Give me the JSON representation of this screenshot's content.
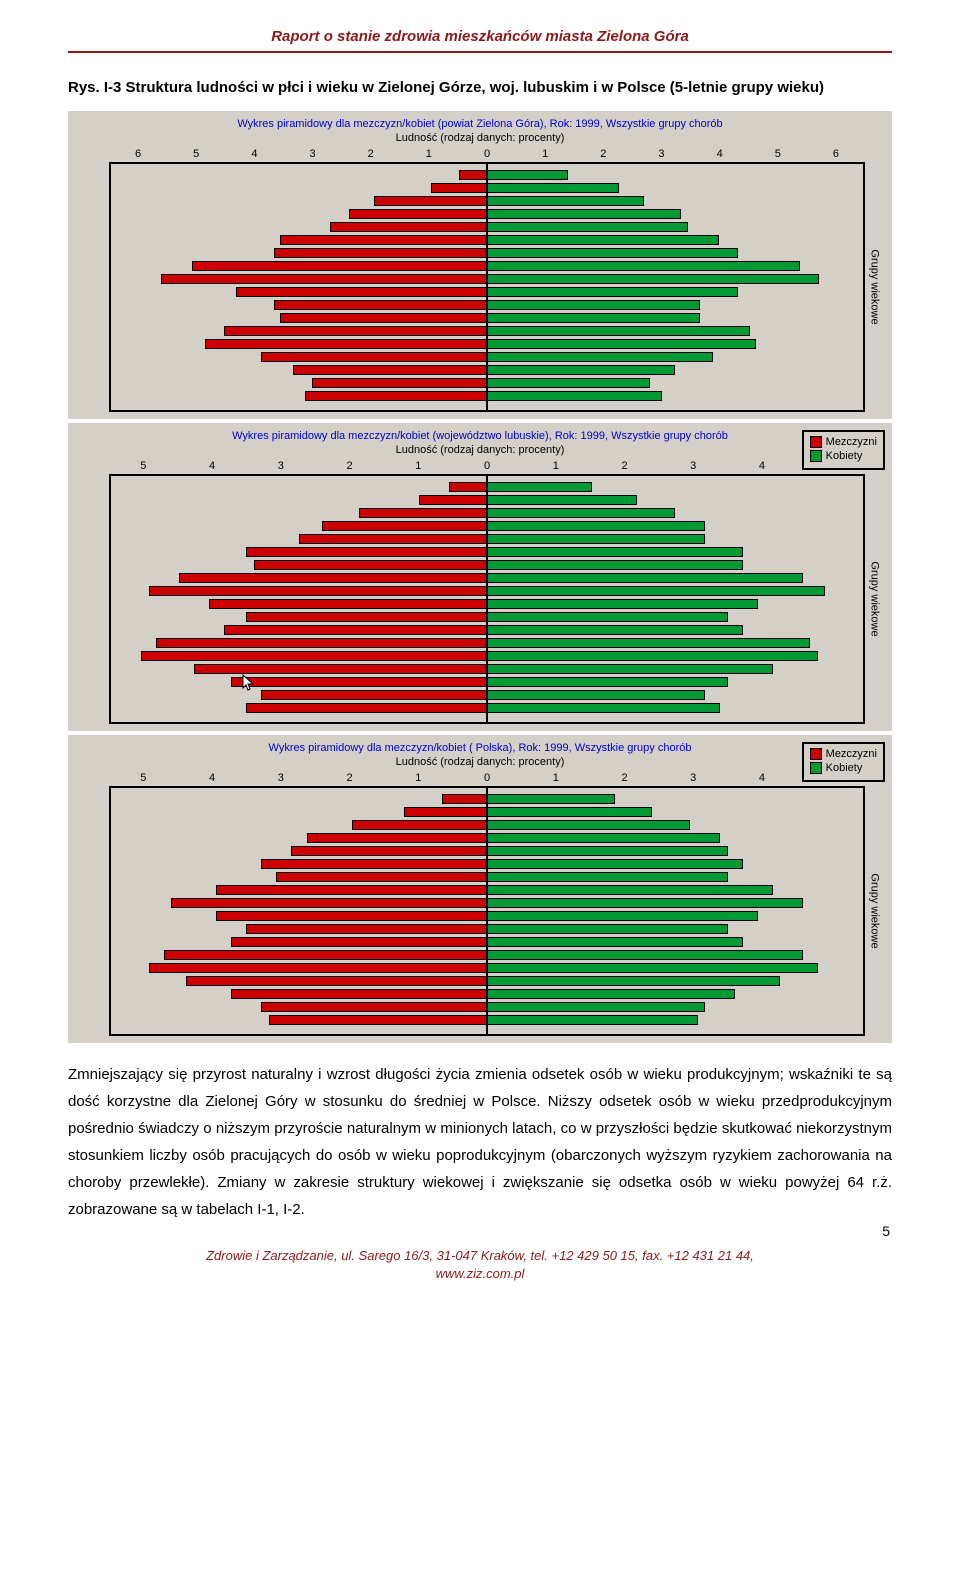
{
  "header": "Raport o stanie zdrowia mieszkańców miasta Zielona Góra",
  "figure_caption": "Rys. I-3 Struktura ludności w płci i wieku w Zielonej Górze, woj. lubuskim i w Polsce (5-letnie grupy wieku)",
  "charts": [
    {
      "title": "Wykres piramidowy dla mezczyzn/kobiet (powiat  Zielona Góra), Rok: 1999, Wszystkie grupy chorób",
      "subtitle": "Ludność (rodzaj danych: procenty)",
      "x_ticks": [
        "6",
        "5",
        "4",
        "3",
        "2",
        "1",
        "0",
        "1",
        "2",
        "3",
        "4",
        "5",
        "6"
      ],
      "max": 6,
      "y_label": "Grupy wiekowe",
      "left_color": "#cc0000",
      "right_color": "#009933",
      "bg_color": "#d4d0c8",
      "border_color": "#000000",
      "has_legend": false,
      "bars": [
        {
          "l": 0.45,
          "r": 1.3
        },
        {
          "l": 0.9,
          "r": 2.1
        },
        {
          "l": 1.8,
          "r": 2.5
        },
        {
          "l": 2.2,
          "r": 3.1
        },
        {
          "l": 2.5,
          "r": 3.2
        },
        {
          "l": 3.3,
          "r": 3.7
        },
        {
          "l": 3.4,
          "r": 4.0
        },
        {
          "l": 4.7,
          "r": 5.0
        },
        {
          "l": 5.2,
          "r": 5.3
        },
        {
          "l": 4.0,
          "r": 4.0
        },
        {
          "l": 3.4,
          "r": 3.4
        },
        {
          "l": 3.3,
          "r": 3.4
        },
        {
          "l": 4.2,
          "r": 4.2
        },
        {
          "l": 4.5,
          "r": 4.3
        },
        {
          "l": 3.6,
          "r": 3.6
        },
        {
          "l": 3.1,
          "r": 3.0
        },
        {
          "l": 2.8,
          "r": 2.6
        },
        {
          "l": 2.9,
          "r": 2.8
        }
      ]
    },
    {
      "title": "Wykres piramidowy dla mezczyzn/kobiet (województwo lubuskie), Rok: 1999, Wszystkie grupy chorób",
      "subtitle": "Ludność (rodzaj danych: procenty)",
      "x_ticks": [
        "5",
        "4",
        "3",
        "2",
        "1",
        "0",
        "1",
        "2",
        "3",
        "4",
        "5"
      ],
      "max": 5,
      "y_label": "Grupy wiekowe",
      "left_color": "#cc0000",
      "right_color": "#009933",
      "bg_color": "#d4d0c8",
      "border_color": "#000000",
      "has_legend": true,
      "legend_items": [
        {
          "color": "#cc0000",
          "label": "Mezczyzni"
        },
        {
          "color": "#009933",
          "label": "Kobiety"
        }
      ],
      "bars": [
        {
          "l": 0.5,
          "r": 1.4
        },
        {
          "l": 0.9,
          "r": 2.0
        },
        {
          "l": 1.7,
          "r": 2.5
        },
        {
          "l": 2.2,
          "r": 2.9
        },
        {
          "l": 2.5,
          "r": 2.9
        },
        {
          "l": 3.2,
          "r": 3.4
        },
        {
          "l": 3.1,
          "r": 3.4
        },
        {
          "l": 4.1,
          "r": 4.2
        },
        {
          "l": 4.5,
          "r": 4.5
        },
        {
          "l": 3.7,
          "r": 3.6
        },
        {
          "l": 3.2,
          "r": 3.2
        },
        {
          "l": 3.5,
          "r": 3.4
        },
        {
          "l": 4.4,
          "r": 4.3
        },
        {
          "l": 4.6,
          "r": 4.4
        },
        {
          "l": 3.9,
          "r": 3.8
        },
        {
          "l": 3.4,
          "r": 3.2
        },
        {
          "l": 3.0,
          "r": 2.9
        },
        {
          "l": 3.2,
          "r": 3.1
        }
      ],
      "cursor_pos": {
        "left_pct": 21,
        "top_pct": 82
      }
    },
    {
      "title": "Wykres piramidowy dla mezczyzn/kobiet ( Polska), Rok: 1999, Wszystkie grupy chorób",
      "subtitle": "Ludność (rodzaj danych: procenty)",
      "x_ticks": [
        "5",
        "4",
        "3",
        "2",
        "1",
        "0",
        "1",
        "2",
        "3",
        "4",
        "5"
      ],
      "max": 5,
      "y_label": "Grupy wiekowe",
      "left_color": "#cc0000",
      "right_color": "#009933",
      "bg_color": "#d4d0c8",
      "border_color": "#000000",
      "has_legend": true,
      "legend_items": [
        {
          "color": "#cc0000",
          "label": "Mezczyzni"
        },
        {
          "color": "#009933",
          "label": "Kobiety"
        }
      ],
      "bars": [
        {
          "l": 0.6,
          "r": 1.7
        },
        {
          "l": 1.1,
          "r": 2.2
        },
        {
          "l": 1.8,
          "r": 2.7
        },
        {
          "l": 2.4,
          "r": 3.1
        },
        {
          "l": 2.6,
          "r": 3.2
        },
        {
          "l": 3.0,
          "r": 3.4
        },
        {
          "l": 2.8,
          "r": 3.2
        },
        {
          "l": 3.6,
          "r": 3.8
        },
        {
          "l": 4.2,
          "r": 4.2
        },
        {
          "l": 3.6,
          "r": 3.6
        },
        {
          "l": 3.2,
          "r": 3.2
        },
        {
          "l": 3.4,
          "r": 3.4
        },
        {
          "l": 4.3,
          "r": 4.2
        },
        {
          "l": 4.5,
          "r": 4.4
        },
        {
          "l": 4.0,
          "r": 3.9
        },
        {
          "l": 3.4,
          "r": 3.3
        },
        {
          "l": 3.0,
          "r": 2.9
        },
        {
          "l": 2.9,
          "r": 2.8
        }
      ]
    }
  ],
  "body_text": "Zmniejszający się przyrost naturalny i wzrost długości życia zmienia odsetek osób w wieku produkcyjnym; wskaźniki te są dość korzystne dla Zielonej Góry w stosunku do średniej w Polsce. Niższy odsetek osób w wieku przedprodukcyjnym pośrednio świadczy o niższym przyroście naturalnym w minionych latach, co w przyszłości będzie skutkować niekorzystnym stosunkiem liczby osób pracujących do osób w wieku poprodukcyjnym (obarczonych wyższym ryzykiem zachorowania na choroby przewlekłe). Zmiany w zakresie struktury wiekowej i zwiększanie się odsetka osób w wieku powyżej 64 r.ż. zobrazowane są w tabelach I-1, I-2.",
  "page_number": "5",
  "footer_line1": "Zdrowie i Zarządzanie, ul. Sarego 16/3, 31-047 Kraków, tel. +12 429 50 15, fax. +12 431 21 44,",
  "footer_line2": "www.ziz.com.pl"
}
